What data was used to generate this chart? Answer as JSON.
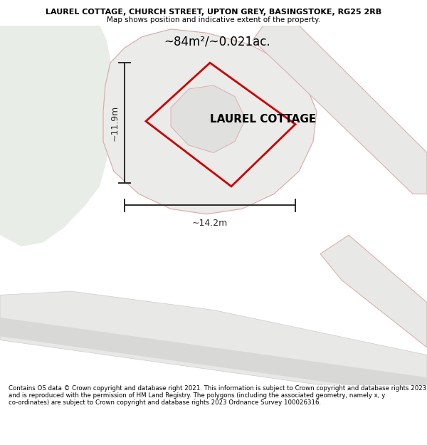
{
  "title_line1": "LAUREL COTTAGE, CHURCH STREET, UPTON GREY, BASINGSTOKE, RG25 2RB",
  "title_line2": "Map shows position and indicative extent of the property.",
  "property_label": "LAUREL COTTAGE",
  "area_label": "~84m²/~0.021ac.",
  "dim_vertical": "~11.9m",
  "dim_horizontal": "~14.2m",
  "footer_text": "Contains OS data © Crown copyright and database right 2021. This information is subject to Crown copyright and database rights 2023 and is reproduced with the permission of HM Land Registry. The polygons (including the associated geometry, namely x, y co-ordinates) are subject to Crown copyright and database rights 2023 Ordnance Survey 100026316.",
  "bg_color": "#ffffff",
  "map_bg": "#f5f5f2",
  "green_area_color": "#e8ede8",
  "road_fill": "#e8e8e6",
  "plot_fill": "#ebebea",
  "plot_edge_color": "#d9a8a8",
  "red_outline_color": "#cc0000",
  "dim_line_color": "#2a2a2a",
  "title_color": "#000000",
  "footer_color": "#000000"
}
